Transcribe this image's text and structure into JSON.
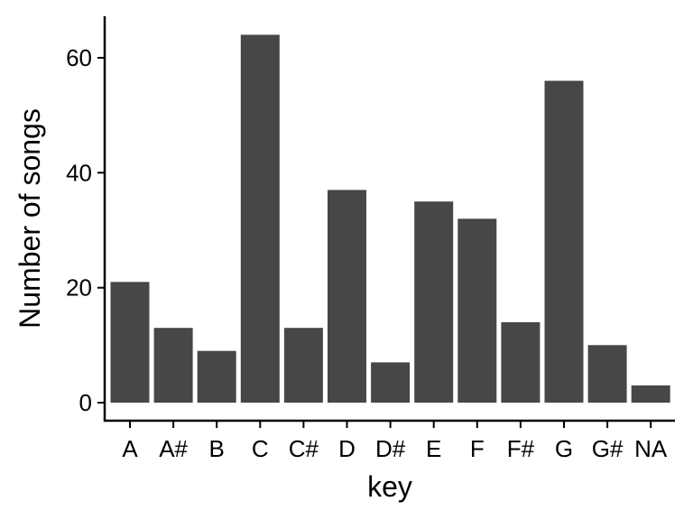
{
  "chart_data": {
    "type": "bar",
    "title": "",
    "xlabel": "key",
    "ylabel": "Number of songs",
    "categories": [
      "A",
      "A#",
      "B",
      "C",
      "C#",
      "D",
      "D#",
      "E",
      "F",
      "F#",
      "G",
      "G#",
      "NA"
    ],
    "values": [
      21,
      13,
      9,
      64,
      13,
      37,
      7,
      35,
      32,
      14,
      56,
      10,
      3
    ],
    "ylim": [
      0,
      67
    ],
    "yticks": [
      0,
      20,
      40,
      60
    ],
    "grid": false,
    "legend": "none",
    "colors": {
      "bar": "#474747",
      "axis": "#000000",
      "background": "#ffffff"
    }
  }
}
